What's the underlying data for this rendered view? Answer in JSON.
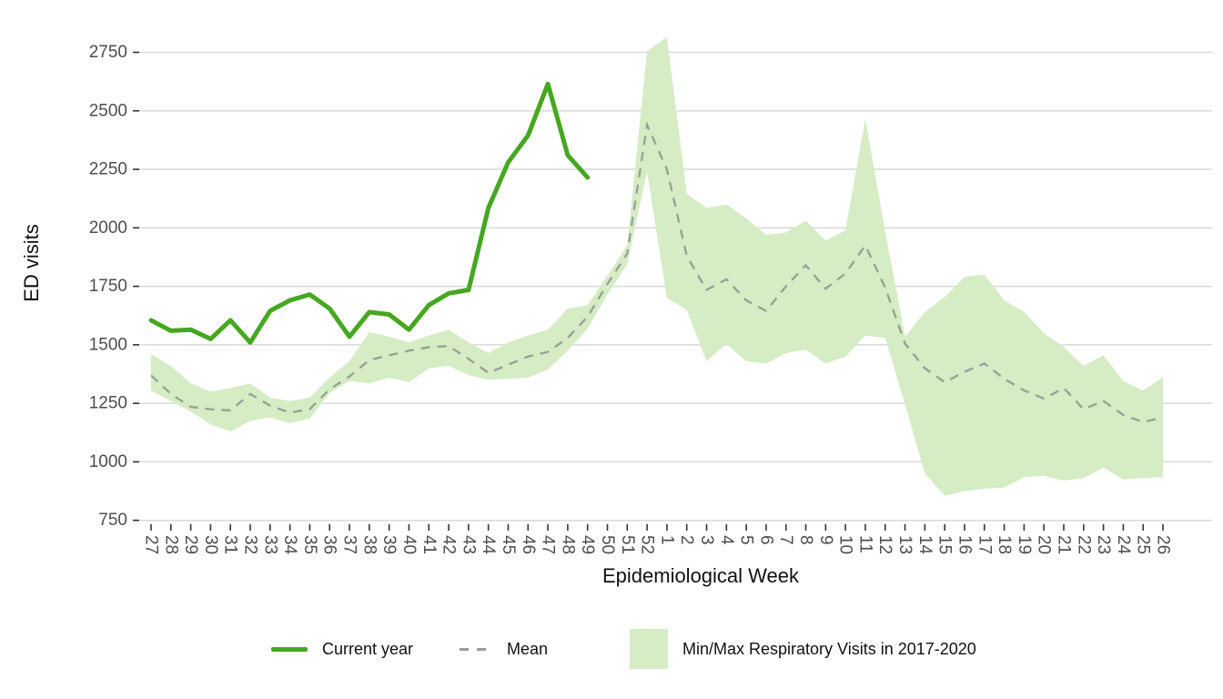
{
  "axes": {
    "x_label": "Epidemiological Week",
    "y_label": "ED visits"
  },
  "legend": {
    "current_year_label": "Current year",
    "mean_label": "Mean",
    "band_label": "Min/Max Respiratory Visits in 2017-2020"
  },
  "colors": {
    "current_year_line": "#46A720",
    "mean_line": "#95A095",
    "legend_mean_dash": "#9b9b9b",
    "band_fill": "#D5ECC4",
    "gridline": "#D9D9D9",
    "tick_mark": "#333333",
    "tick_label": "#4d4d4d",
    "background": "#ffffff"
  },
  "chart_data": {
    "type": "line",
    "title": "",
    "xlabel": "Epidemiological Week",
    "ylabel": "ED visits",
    "x_tick_labels": [
      "27",
      "28",
      "29",
      "30",
      "31",
      "32",
      "33",
      "34",
      "35",
      "36",
      "37",
      "38",
      "39",
      "40",
      "41",
      "42",
      "43",
      "44",
      "45",
      "46",
      "47",
      "48",
      "49",
      "50",
      "51",
      "52",
      "1",
      "2",
      "3",
      "4",
      "5",
      "6",
      "7",
      "8",
      "9",
      "10",
      "11",
      "12",
      "13",
      "14",
      "15",
      "16",
      "17",
      "18",
      "19",
      "20",
      "21",
      "22",
      "23",
      "24",
      "25",
      "26"
    ],
    "y_ticks": [
      750,
      1000,
      1250,
      1500,
      1750,
      2000,
      2250,
      2500,
      2750
    ],
    "ylim": [
      700,
      2870
    ],
    "grid": "horizontal-only",
    "legend_position": "bottom",
    "series": [
      {
        "name": "Current year",
        "type": "line",
        "color": "#46A720",
        "start_week_index": 0,
        "values": [
          1605,
          1560,
          1565,
          1525,
          1605,
          1510,
          1645,
          1690,
          1715,
          1655,
          1535,
          1640,
          1630,
          1565,
          1670,
          1720,
          1735,
          2085,
          2280,
          2395,
          2615,
          2310,
          2215
        ]
      },
      {
        "name": "Mean",
        "type": "dashed-line",
        "color": "#95A095",
        "start_week_index": 0,
        "values": [
          1370,
          1290,
          1235,
          1225,
          1220,
          1290,
          1240,
          1210,
          1225,
          1310,
          1365,
          1435,
          1455,
          1475,
          1490,
          1495,
          1440,
          1380,
          1415,
          1450,
          1470,
          1530,
          1620,
          1760,
          1890,
          2440,
          2250,
          1880,
          1735,
          1780,
          1690,
          1645,
          1750,
          1840,
          1740,
          1805,
          1925,
          1745,
          1505,
          1400,
          1340,
          1385,
          1420,
          1355,
          1305,
          1270,
          1315,
          1225,
          1260,
          1200,
          1170,
          1190
        ]
      },
      {
        "name": "Min/Max Respiratory Visits in 2017-2020",
        "type": "band",
        "color": "#D5ECC4",
        "start_week_index": 0,
        "min": [
          1305,
          1260,
          1215,
          1160,
          1130,
          1175,
          1190,
          1165,
          1185,
          1295,
          1345,
          1335,
          1360,
          1340,
          1400,
          1410,
          1370,
          1350,
          1355,
          1360,
          1395,
          1475,
          1570,
          1715,
          1845,
          2240,
          1700,
          1650,
          1430,
          1505,
          1430,
          1420,
          1465,
          1480,
          1420,
          1450,
          1540,
          1530,
          1245,
          950,
          855,
          875,
          885,
          890,
          935,
          940,
          920,
          930,
          975,
          925,
          930,
          935
        ],
        "max": [
          1460,
          1410,
          1335,
          1300,
          1315,
          1335,
          1275,
          1260,
          1275,
          1360,
          1430,
          1555,
          1535,
          1510,
          1540,
          1565,
          1510,
          1465,
          1510,
          1540,
          1565,
          1655,
          1670,
          1795,
          1925,
          2755,
          2815,
          2145,
          2085,
          2100,
          2040,
          1970,
          1980,
          2030,
          1945,
          1990,
          2465,
          1985,
          1535,
          1640,
          1705,
          1790,
          1800,
          1690,
          1640,
          1550,
          1490,
          1410,
          1455,
          1345,
          1305,
          1360
        ]
      }
    ]
  }
}
